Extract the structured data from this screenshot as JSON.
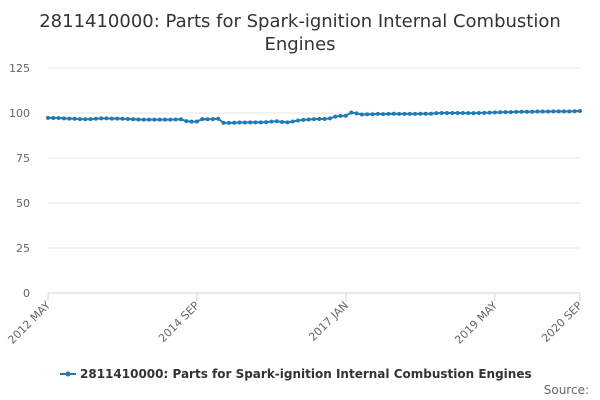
{
  "colors": {
    "series": "#1f7ab5",
    "grid": "#e6e6e6",
    "axis": "#ccd6eb",
    "text": "#333333",
    "tick_text": "#666666"
  },
  "credits": "Source:",
  "chart_data": {
    "type": "line",
    "title_line1": "2811410000: Parts for Spark-ignition Internal Combustion",
    "title_line2": "Engines",
    "xlabel": "",
    "ylabel": "",
    "ylim": [
      0,
      125
    ],
    "yticks": [
      0,
      25,
      50,
      75,
      100,
      125
    ],
    "grid": true,
    "legend_position": "bottom-center",
    "x_tick_labels": [
      {
        "label": "2012 MAY",
        "index": 0
      },
      {
        "label": "2014 SEP",
        "index": 28
      },
      {
        "label": "2017 JAN",
        "index": 56
      },
      {
        "label": "2019 MAY",
        "index": 84
      },
      {
        "label": "2020 SEP",
        "index": 100
      }
    ],
    "x_start": "2012-05",
    "x_end": "2020-09",
    "series": [
      {
        "name": "2811410000: Parts for Spark-ignition Internal Combustion Engines",
        "values": [
          97.3,
          97.2,
          97.2,
          97.0,
          96.9,
          96.8,
          96.6,
          96.5,
          96.6,
          96.8,
          97.0,
          97.0,
          96.9,
          96.9,
          96.8,
          96.7,
          96.5,
          96.4,
          96.3,
          96.3,
          96.3,
          96.3,
          96.3,
          96.3,
          96.4,
          96.5,
          95.5,
          95.2,
          95.3,
          96.6,
          96.5,
          96.6,
          96.8,
          94.5,
          94.5,
          94.6,
          94.7,
          94.7,
          94.8,
          94.8,
          94.8,
          94.9,
          95.2,
          95.4,
          95.0,
          94.8,
          95.3,
          95.8,
          96.2,
          96.4,
          96.6,
          96.7,
          96.7,
          97.0,
          98.0,
          98.4,
          98.5,
          100.3,
          99.8,
          99.2,
          99.3,
          99.3,
          99.5,
          99.4,
          99.5,
          99.6,
          99.5,
          99.5,
          99.5,
          99.5,
          99.6,
          99.6,
          99.6,
          99.9,
          100.0,
          100.0,
          100.0,
          100.0,
          100.0,
          99.9,
          99.9,
          100.0,
          100.1,
          100.2,
          100.3,
          100.4,
          100.5,
          100.5,
          100.6,
          100.7,
          100.7,
          100.7,
          100.8,
          100.8,
          100.8,
          100.9,
          100.9,
          100.9,
          100.9,
          101.0,
          101.1
        ]
      }
    ]
  }
}
